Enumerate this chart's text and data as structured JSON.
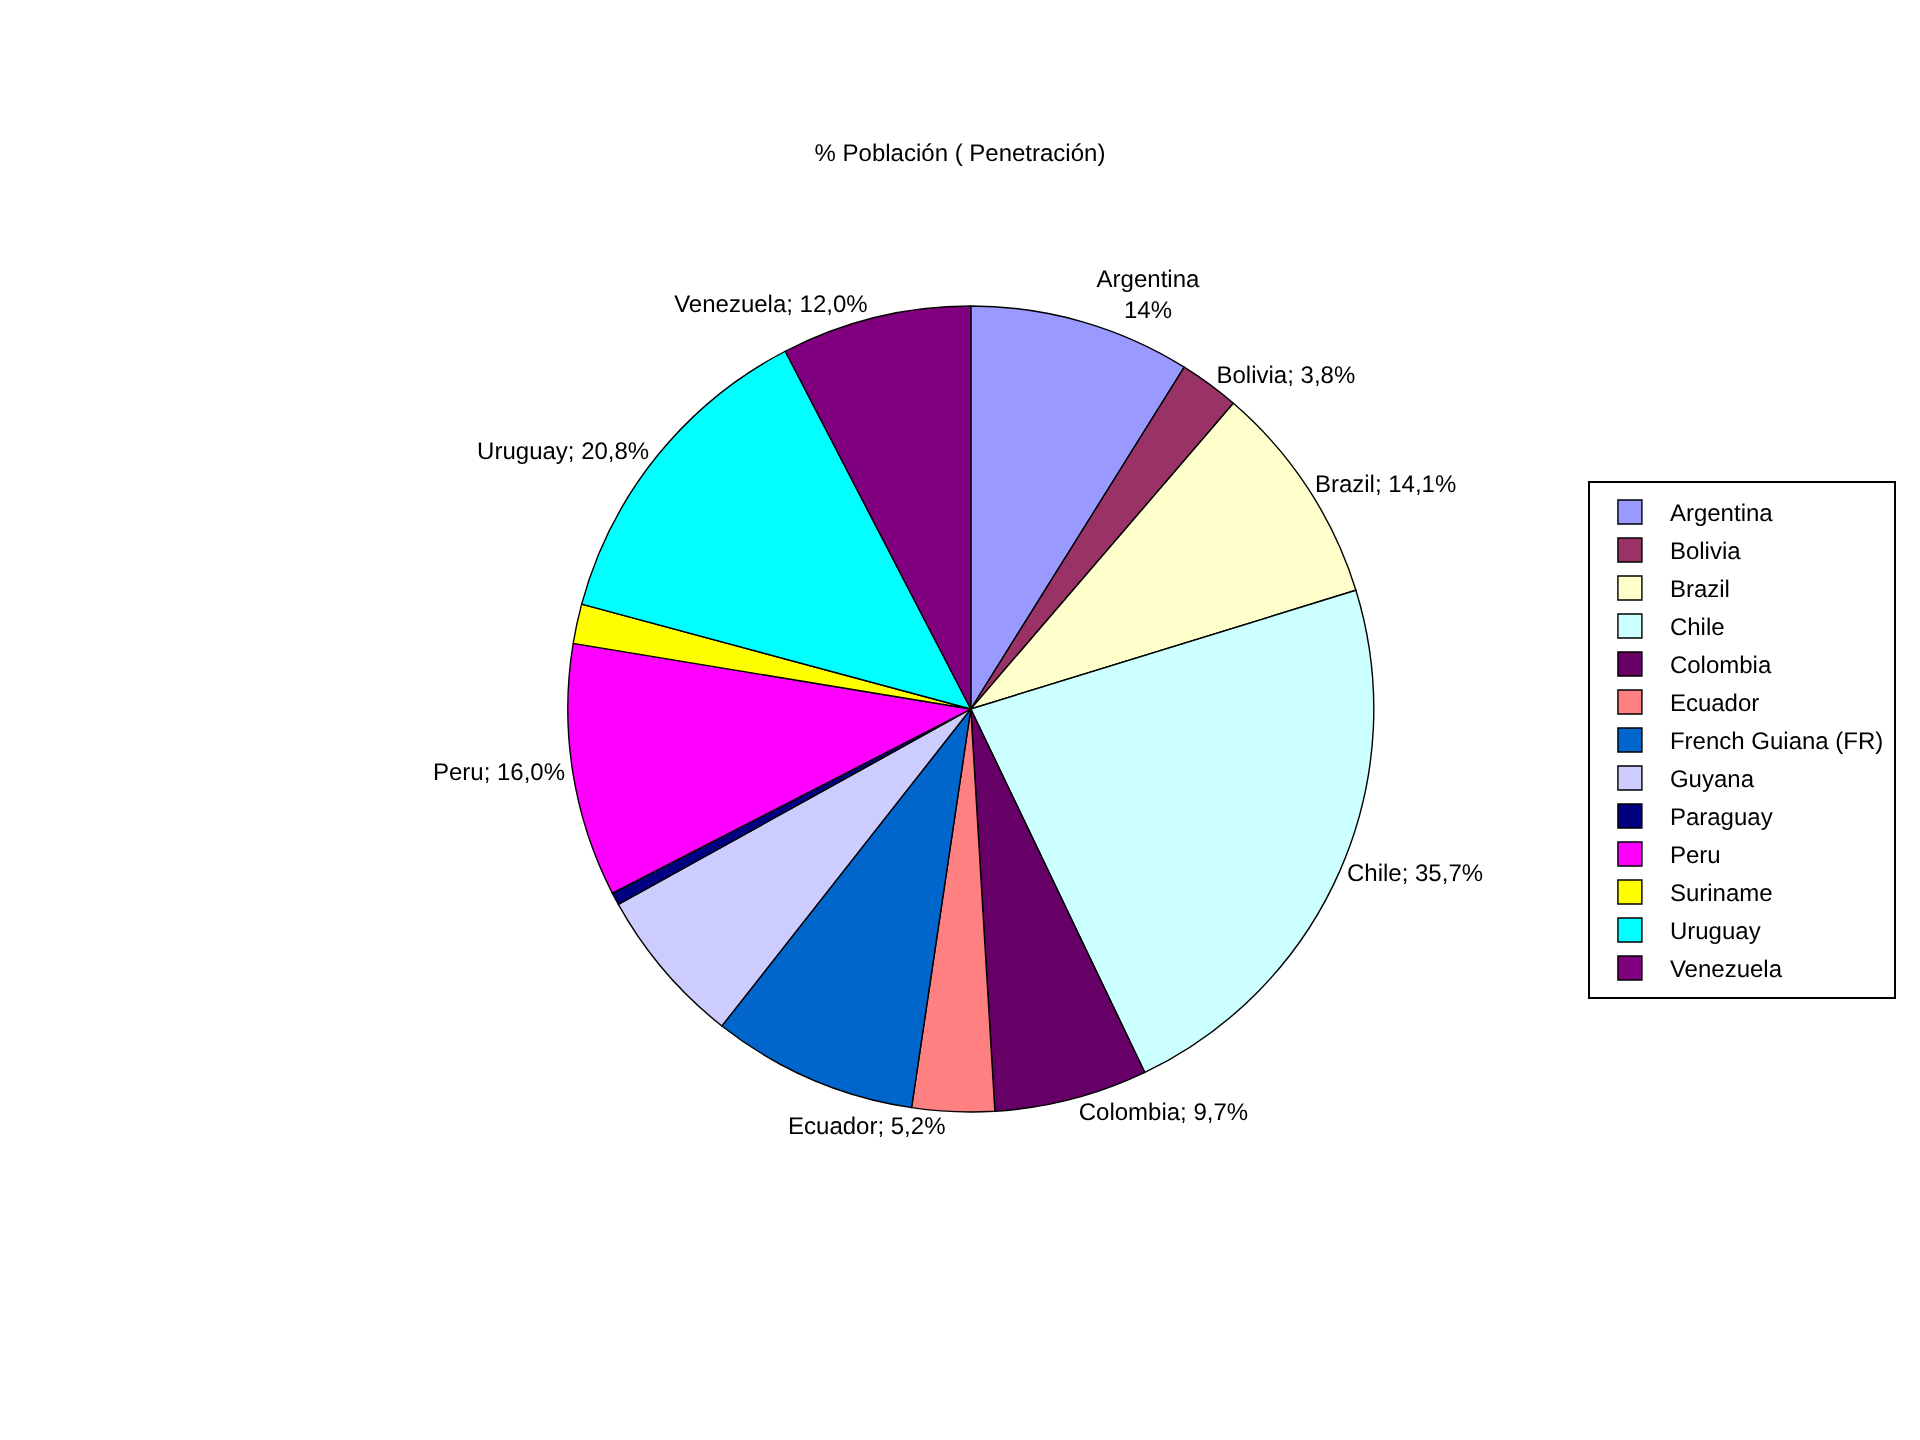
{
  "chart_data": {
    "type": "pie",
    "title": "% Población ( Penetración)",
    "categories": [
      "Argentina",
      "Bolivia",
      "Brazil",
      "Chile",
      "Colombia",
      "Ecuador",
      "French Guiana (FR)",
      "Guyana",
      "Paraguay",
      "Peru",
      "Suriname",
      "Uruguay",
      "Venezuela"
    ],
    "values": [
      14,
      3.8,
      14.1,
      35.7,
      9.7,
      5.2,
      13,
      10,
      0.8,
      16.0,
      2.5,
      20.8,
      12.0
    ],
    "value_labels": [
      "Argentina\n14%",
      "Bolivia; 3,8%",
      "Brazil; 14,1%",
      "Chile; 35,7%",
      "Colombia; 9,7%",
      "Ecuador; 5,2%",
      null,
      null,
      null,
      "Peru; 16,0%",
      null,
      "Uruguay; 20,8%",
      "Venezuela; 12,0%"
    ],
    "colors": [
      "#9999ff",
      "#993366",
      "#ffffcc",
      "#ccffff",
      "#660066",
      "#ff8080",
      "#0066cc",
      "#ccccff",
      "#000080",
      "#ff00ff",
      "#ffff00",
      "#00ffff",
      "#800080"
    ],
    "legend": "right"
  }
}
